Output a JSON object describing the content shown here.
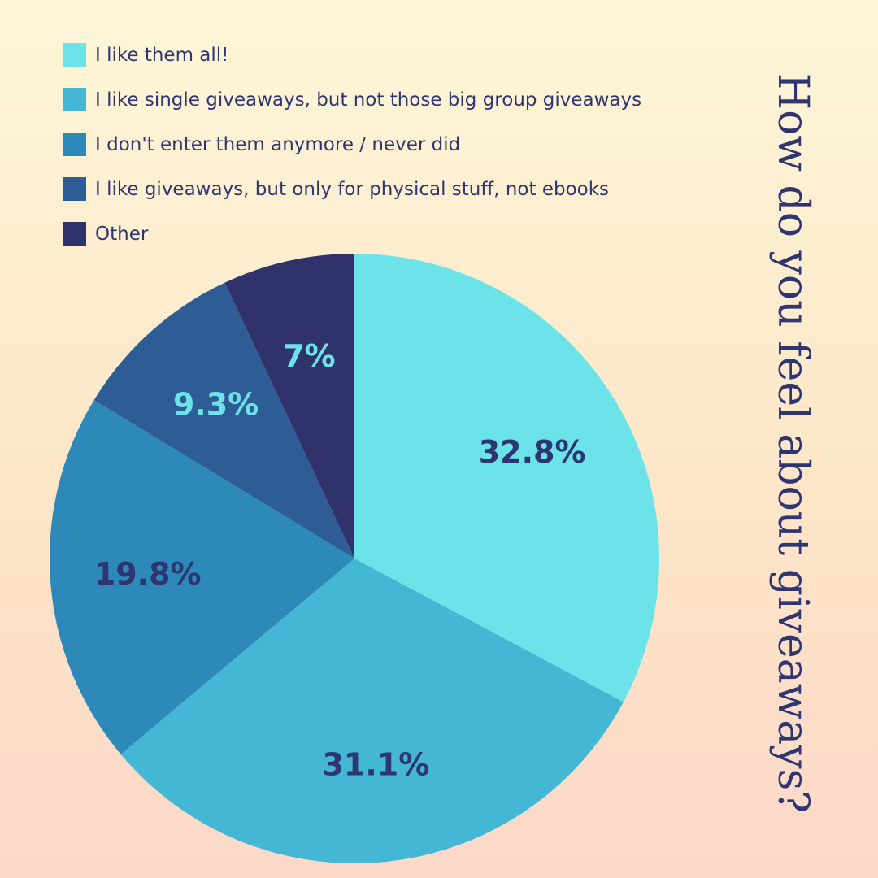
{
  "chart_data": {
    "type": "pie",
    "title": "How do you feel about giveaways?",
    "legend_position": "top-left",
    "slices": [
      {
        "label": "I like them all!",
        "value": 32.8,
        "display": "32.8%",
        "color": "#6be3e8",
        "label_color": "#2f3570"
      },
      {
        "label": "I like single giveaways, but not those big group giveaways",
        "value": 31.1,
        "display": "31.1%",
        "color": "#43b7d4",
        "label_color": "#2f3570"
      },
      {
        "label": "I don't enter them anymore / never did",
        "value": 19.8,
        "display": "19.8%",
        "color": "#2d8ab8",
        "label_color": "#2f3570"
      },
      {
        "label": "I like giveaways, but only for physical stuff, not ebooks",
        "value": 9.3,
        "display": "9.3%",
        "color": "#2e5d96",
        "label_color": "#6be3e8"
      },
      {
        "label": "Other",
        "value": 7,
        "display": "7%",
        "color": "#30336b",
        "label_color": "#6be3e8"
      }
    ]
  }
}
